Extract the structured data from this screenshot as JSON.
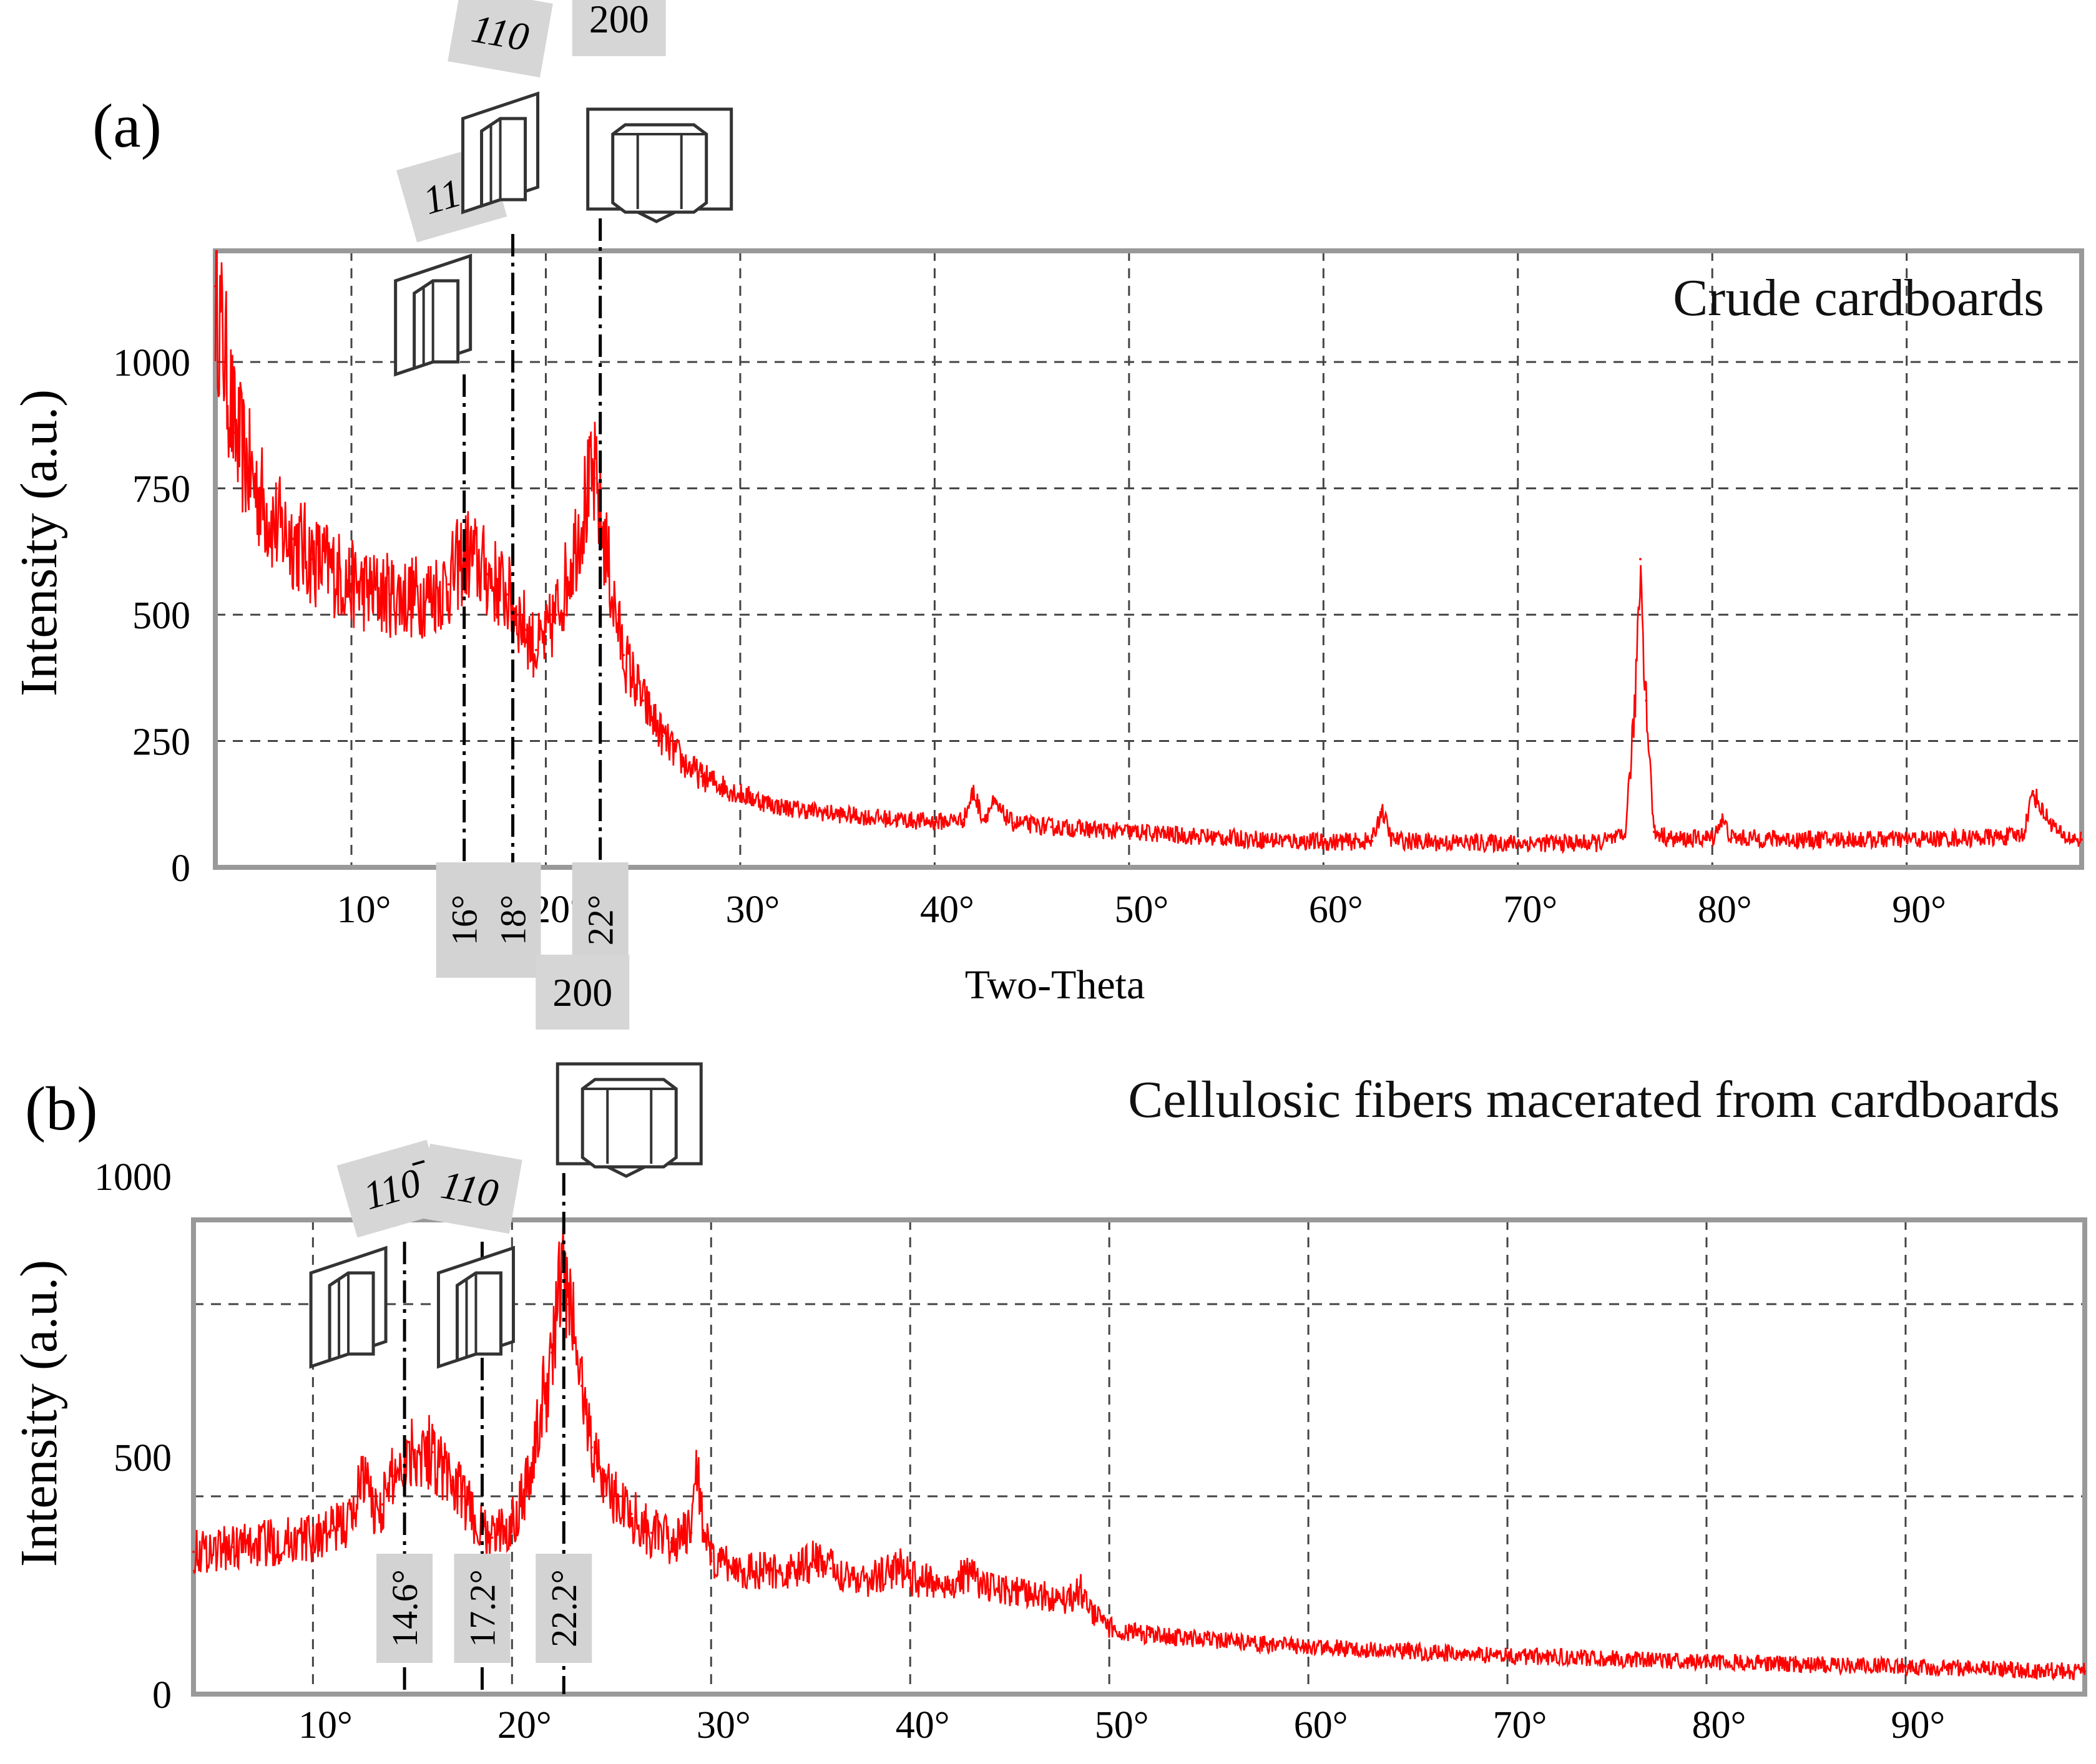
{
  "chart_data": [
    {
      "type": "line",
      "panel_label": "(a)",
      "title": "Crude cardboards",
      "xlabel": "Two-Theta",
      "ylabel": "Intensity (a.u.)",
      "xlim": [
        3,
        99
      ],
      "ylim": [
        0,
        1220
      ],
      "grid": true,
      "x_ticks": [
        10,
        20,
        30,
        40,
        50,
        60,
        70,
        80,
        90
      ],
      "x_tick_labels": [
        "10°",
        "20°",
        "30°",
        "40°",
        "50°",
        "60°",
        "70°",
        "80°",
        "90°"
      ],
      "y_ticks": [
        0,
        250,
        500,
        750,
        1000
      ],
      "y_tick_labels": [
        "0",
        "250",
        "500",
        "750",
        "1000"
      ],
      "series": [
        {
          "color": "#ff0000",
          "points": [
            [
              3.0,
              1150
            ],
            [
              4.0,
              860
            ],
            [
              5.0,
              760
            ],
            [
              6.0,
              680
            ],
            [
              7.0,
              650
            ],
            [
              8.0,
              610
            ],
            [
              9.0,
              590
            ],
            [
              10.0,
              560
            ],
            [
              11.0,
              545
            ],
            [
              12.0,
              540
            ],
            [
              13.0,
              535
            ],
            [
              14.0,
              540
            ],
            [
              15.0,
              560
            ],
            [
              15.5,
              600
            ],
            [
              16.0,
              620
            ],
            [
              16.5,
              600
            ],
            [
              17.0,
              580
            ],
            [
              18.0,
              540
            ],
            [
              19.0,
              470
            ],
            [
              19.5,
              430
            ],
            [
              20.0,
              450
            ],
            [
              20.5,
              500
            ],
            [
              21.0,
              560
            ],
            [
              21.5,
              640
            ],
            [
              22.0,
              720
            ],
            [
              22.5,
              770
            ],
            [
              23.0,
              650
            ],
            [
              23.5,
              520
            ],
            [
              24.0,
              420
            ],
            [
              25.0,
              330
            ],
            [
              26.0,
              260
            ],
            [
              27.0,
              210
            ],
            [
              28.0,
              180
            ],
            [
              30.0,
              145
            ],
            [
              32.0,
              120
            ],
            [
              35.0,
              105
            ],
            [
              38.0,
              95
            ],
            [
              40.0,
              90
            ],
            [
              41.5,
              95
            ],
            [
              42.0,
              150
            ],
            [
              42.5,
              95
            ],
            [
              43.0,
              125
            ],
            [
              44.0,
              88
            ],
            [
              46.0,
              80
            ],
            [
              50.0,
              70
            ],
            [
              55.0,
              58
            ],
            [
              60.0,
              50
            ],
            [
              62.5,
              52
            ],
            [
              63.0,
              115
            ],
            [
              63.5,
              55
            ],
            [
              65.0,
              50
            ],
            [
              70.0,
              48
            ],
            [
              74.0,
              48
            ],
            [
              75.5,
              60
            ],
            [
              76.0,
              300
            ],
            [
              76.3,
              610
            ],
            [
              76.6,
              330
            ],
            [
              77.0,
              70
            ],
            [
              78.0,
              55
            ],
            [
              80.0,
              58
            ],
            [
              80.5,
              95
            ],
            [
              81.0,
              58
            ],
            [
              85.0,
              55
            ],
            [
              90.0,
              55
            ],
            [
              95.0,
              60
            ],
            [
              96.0,
              65
            ],
            [
              96.5,
              150
            ],
            [
              97.0,
              110
            ],
            [
              98.0,
              60
            ],
            [
              99.0,
              55
            ]
          ]
        }
      ],
      "annotations": [
        {
          "angle_label": "16°",
          "x": 15.8,
          "plane_label": "110",
          "plane_overbar": true
        },
        {
          "angle_label": "18°",
          "x": 18.3,
          "plane_label": "110",
          "plane_overbar": false
        },
        {
          "angle_label": "22°",
          "x": 22.8,
          "plane_label": "200",
          "plane_overbar": false
        }
      ]
    },
    {
      "type": "line",
      "panel_label": "(b)",
      "title": "Cellulosic fibers macerated from cardboards",
      "xlabel": "",
      "ylabel": "Intensity (a.u.)",
      "xlim": [
        4,
        99
      ],
      "ylim": [
        0,
        1000
      ],
      "grid": true,
      "x_ticks": [
        10,
        20,
        30,
        40,
        50,
        60,
        70,
        80,
        90
      ],
      "x_tick_labels": [
        "10°",
        "20°",
        "30°",
        "40°",
        "50°",
        "60°",
        "70°",
        "80°",
        "90°"
      ],
      "y_ticks": [
        0,
        500,
        1000
      ],
      "y_tick_labels": [
        "0",
        "500",
        "1000"
      ],
      "series": [
        {
          "color": "#ff0000",
          "points": [
            [
              4.0,
              300
            ],
            [
              6.0,
              310
            ],
            [
              8.0,
              320
            ],
            [
              10.0,
              330
            ],
            [
              11.0,
              345
            ],
            [
              12.0,
              370
            ],
            [
              12.5,
              480
            ],
            [
              13.0,
              390
            ],
            [
              13.5,
              400
            ],
            [
              14.0,
              460
            ],
            [
              15.0,
              520
            ],
            [
              16.0,
              510
            ],
            [
              17.0,
              450
            ],
            [
              18.0,
              380
            ],
            [
              18.5,
              340
            ],
            [
              19.0,
              330
            ],
            [
              20.0,
              360
            ],
            [
              21.0,
              480
            ],
            [
              21.5,
              600
            ],
            [
              22.0,
              720
            ],
            [
              22.5,
              890
            ],
            [
              23.0,
              800
            ],
            [
              23.5,
              650
            ],
            [
              24.0,
              520
            ],
            [
              25.0,
              420
            ],
            [
              26.0,
              380
            ],
            [
              27.0,
              340
            ],
            [
              28.0,
              320
            ],
            [
              29.0,
              340
            ],
            [
              29.3,
              480
            ],
            [
              29.7,
              330
            ],
            [
              30.0,
              280
            ],
            [
              32.0,
              260
            ],
            [
              34.0,
              255
            ],
            [
              35.5,
              290
            ],
            [
              36.0,
              265
            ],
            [
              38.0,
              240
            ],
            [
              39.5,
              270
            ],
            [
              40.0,
              245
            ],
            [
              42.0,
              230
            ],
            [
              43.0,
              255
            ],
            [
              44.0,
              220
            ],
            [
              46.0,
              210
            ],
            [
              48.0,
              200
            ],
            [
              48.5,
              225
            ],
            [
              49.0,
              180
            ],
            [
              50.0,
              140
            ],
            [
              52.0,
              125
            ],
            [
              55.0,
              115
            ],
            [
              58.0,
              105
            ],
            [
              60.0,
              100
            ],
            [
              65.0,
              90
            ],
            [
              70.0,
              80
            ],
            [
              75.0,
              75
            ],
            [
              80.0,
              68
            ],
            [
              85.0,
              62
            ],
            [
              90.0,
              58
            ],
            [
              95.0,
              52
            ],
            [
              99.0,
              48
            ]
          ]
        }
      ],
      "annotations": [
        {
          "angle_label": "14.6°",
          "x": 14.6,
          "plane_label": "110",
          "plane_overbar": true
        },
        {
          "angle_label": "17.2°",
          "x": 18.5,
          "plane_label": "110",
          "plane_overbar": false
        },
        {
          "angle_label": "22.2°",
          "x": 22.6,
          "plane_label": "200",
          "plane_overbar": false
        }
      ]
    }
  ]
}
